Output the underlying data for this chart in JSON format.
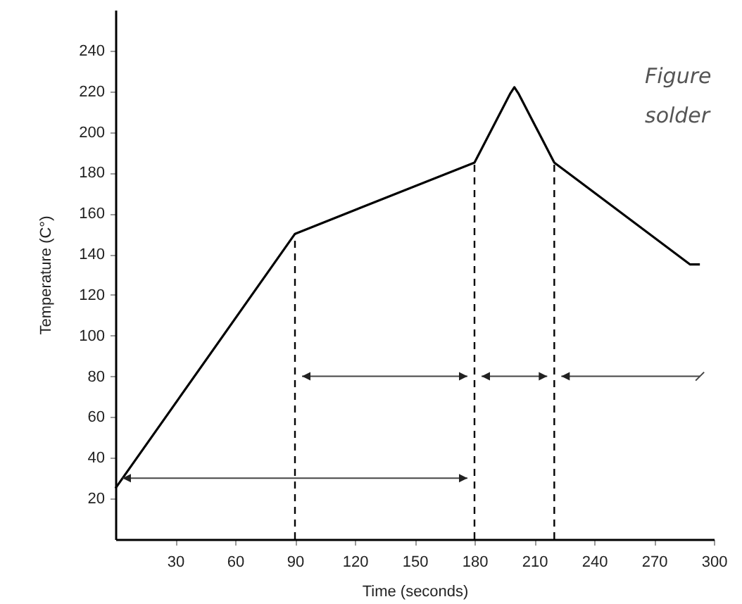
{
  "chart_data": {
    "type": "line",
    "xlabel": "Time (seconds)",
    "ylabel": "Temperature (C°)",
    "xlim": [
      0,
      300
    ],
    "xticks": [
      30,
      60,
      90,
      120,
      150,
      180,
      210,
      240,
      270,
      300
    ],
    "ylim": [
      0,
      260
    ],
    "yticks": [
      20,
      40,
      60,
      80,
      100,
      120,
      140,
      160,
      180,
      200,
      220,
      240
    ],
    "grid": false,
    "marker": "none",
    "annotations": [
      "Figure",
      "solder"
    ],
    "series": [
      {
        "color": "#000000",
        "line_style": "solid",
        "x": [
          0,
          90,
          180,
          198,
          200,
          202,
          220,
          288,
          293
        ],
        "values": [
          25,
          150,
          185,
          219,
          222,
          219,
          185,
          135,
          135
        ]
      }
    ],
    "ref_lines": [
      {
        "axis": "x",
        "value": 90,
        "color": "#000000",
        "line_style": "dashed"
      },
      {
        "axis": "x",
        "value": 180,
        "color": "#000000",
        "line_style": "dashed"
      },
      {
        "axis": "x",
        "value": 220,
        "color": "#000000",
        "line_style": "dashed"
      }
    ]
  }
}
